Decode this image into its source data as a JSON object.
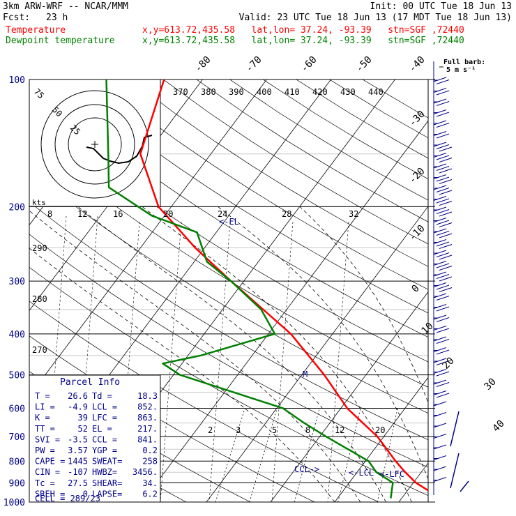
{
  "header": {
    "model": "3km ARW-WRF -- NCAR/MMM",
    "init": "Init: 00 UTC Tue 18 Jun 13",
    "fcst_label": "Fcst:",
    "fcst_hours": "23 h",
    "valid": "Valid: 23 UTC Tue 18 Jun 13 (17 MDT Tue 18 Jun 13)",
    "temp_line": {
      "label": "Temperature",
      "location": "x,y=613.72,435.58   lat,lon= 37.24, -93.39   stn=SGF ,72440"
    },
    "dew_line": {
      "label": "Dewpoint temperature",
      "location": "x,y=613.72,435.58   lat,lon= 37.24, -93.39   stn=SGF ,72440"
    }
  },
  "barb_legend": {
    "title": "Full barb:",
    "unit": "5 m s⁻¹"
  },
  "parcel": {
    "title": "Parcel Info",
    "rows": [
      [
        "T  =",
        "26.6",
        "Td =",
        "18.3"
      ],
      [
        "LI =",
        "-4.9",
        "LCL =",
        "852."
      ],
      [
        "K  =",
        "39",
        "LFC =",
        "863."
      ],
      [
        "TT =",
        "52",
        "EL  =",
        "217."
      ],
      [
        "SVI =",
        "-3.5",
        "CCL =",
        "841."
      ],
      [
        "PW =",
        "3.57",
        "YGP =",
        "0.2"
      ],
      [
        "CAPE =",
        "1445",
        "SWEAT=",
        "258"
      ],
      [
        "CIN =",
        "-107",
        "HWBZ=",
        "3456."
      ],
      [
        "Tc =",
        "27.5",
        "SHEAR=",
        "34."
      ],
      [
        "SREH =",
        "0",
        "LAPSE=",
        "6.2"
      ]
    ],
    "cell": "CELL = 289/23"
  },
  "hodograph": {
    "ring_labels": [
      "75",
      "50",
      "25"
    ],
    "units": "kts"
  },
  "level_markers": {
    "el": "<-EL",
    "lcl": "<-LCL",
    "lfc": "<-LFC",
    "ccl": "CCL->",
    "m": "M"
  },
  "chart_data": {
    "type": "line",
    "title": "",
    "pressure_levels": [
      "100",
      "200",
      "300",
      "400",
      "500",
      "600",
      "700",
      "800",
      "900",
      "1000"
    ],
    "isotherm_labels_top": [
      "-80",
      "-70",
      "-60",
      "-50",
      "-40"
    ],
    "isotherm_labels_right": [
      "-30",
      "-20",
      "-10",
      "0",
      "10",
      "20",
      "30",
      "40"
    ],
    "theta_labels_top": [
      "370",
      "380",
      "390",
      "400",
      "410",
      "420",
      "430",
      "440"
    ],
    "theta_labels_left": [
      "290",
      "280",
      "270"
    ],
    "hodo_speed_labels": [
      "8",
      "12",
      "16",
      "20",
      "24",
      "28",
      "32"
    ],
    "mixing_ratio_labels": [
      "2",
      "3",
      "5",
      "8",
      "12",
      "20"
    ],
    "series": [
      {
        "name": "Temperature",
        "color": "#ff0000",
        "points": [
          [
            980,
            26.6
          ],
          [
            950,
            24
          ],
          [
            900,
            20.4
          ],
          [
            850,
            17.5
          ],
          [
            800,
            14.7
          ],
          [
            700,
            9
          ],
          [
            600,
            1
          ],
          [
            500,
            -6.5
          ],
          [
            400,
            -16.5
          ],
          [
            300,
            -32
          ],
          [
            250,
            -41.5
          ],
          [
            200,
            -52
          ],
          [
            150,
            -61
          ],
          [
            100,
            -66
          ]
        ]
      },
      {
        "name": "Dewpoint temperature",
        "color": "#008000",
        "points": [
          [
            980,
            18.3
          ],
          [
            900,
            16.8
          ],
          [
            850,
            13
          ],
          [
            800,
            10.5
          ],
          [
            700,
            1
          ],
          [
            650,
            -4
          ],
          [
            600,
            -9
          ],
          [
            500,
            -29
          ],
          [
            470,
            -33
          ],
          [
            450,
            -28
          ],
          [
            400,
            -19
          ],
          [
            350,
            -24
          ],
          [
            300,
            -32
          ],
          [
            270,
            -38
          ],
          [
            230,
            -43
          ],
          [
            210,
            -52
          ],
          [
            180,
            -62
          ],
          [
            150,
            -66
          ],
          [
            100,
            -75
          ]
        ]
      }
    ]
  }
}
